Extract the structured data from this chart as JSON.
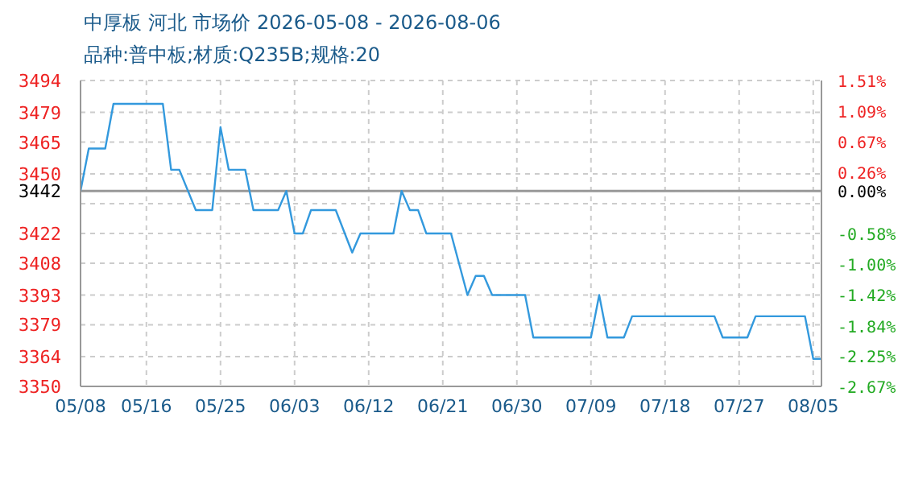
{
  "chart_data": {
    "type": "line",
    "title": "中厚板 河北 市场价 2026-05-08 - 2026-08-06",
    "subtitle": "品种:普中板;材质:Q235B;规格:20",
    "x": [
      "2026-05-08",
      "2026-05-09",
      "2026-05-11",
      "2026-05-12",
      "2026-05-18",
      "2026-05-19",
      "2026-05-20",
      "2026-05-22",
      "2026-05-24",
      "2026-05-25",
      "2026-05-26",
      "2026-05-28",
      "2026-05-29",
      "2026-06-01",
      "2026-06-02",
      "2026-06-03",
      "2026-06-04",
      "2026-06-05",
      "2026-06-08",
      "2026-06-10",
      "2026-06-11",
      "2026-06-15",
      "2026-06-16",
      "2026-06-17",
      "2026-06-18",
      "2026-06-19",
      "2026-06-22",
      "2026-06-24",
      "2026-06-25",
      "2026-06-26",
      "2026-06-27",
      "2026-07-01",
      "2026-07-02",
      "2026-07-09",
      "2026-07-10",
      "2026-07-11",
      "2026-07-13",
      "2026-07-14",
      "2026-07-24",
      "2026-07-25",
      "2026-07-28",
      "2026-07-29",
      "2026-08-04",
      "2026-08-05",
      "2026-08-06"
    ],
    "series": [
      {
        "color": "#3399dd",
        "values": [
          3442,
          3462,
          3462,
          3483,
          3483,
          3452,
          3452,
          3433,
          3433,
          3472,
          3452,
          3452,
          3433,
          3433,
          3442,
          3422,
          3422,
          3433,
          3433,
          3413,
          3422,
          3422,
          3442,
          3433,
          3433,
          3422,
          3422,
          3393,
          3402,
          3402,
          3393,
          3393,
          3373,
          3373,
          3393,
          3373,
          3373,
          3383,
          3383,
          3373,
          3373,
          3383,
          3383,
          3363,
          3363
        ]
      }
    ],
    "xlim": [
      "2026-05-08",
      "2026-08-06"
    ],
    "xticks": [
      {
        "value": "2026-05-08",
        "label": "05/08"
      },
      {
        "value": "2026-05-16",
        "label": "05/16"
      },
      {
        "value": "2026-05-25",
        "label": "05/25"
      },
      {
        "value": "2026-06-03",
        "label": "06/03"
      },
      {
        "value": "2026-06-12",
        "label": "06/12"
      },
      {
        "value": "2026-06-21",
        "label": "06/21"
      },
      {
        "value": "2026-06-30",
        "label": "06/30"
      },
      {
        "value": "2026-07-09",
        "label": "07/09"
      },
      {
        "value": "2026-07-18",
        "label": "07/18"
      },
      {
        "value": "2026-07-27",
        "label": "07/27"
      },
      {
        "value": "2026-08-05",
        "label": "08/05"
      }
    ],
    "ylim": [
      3350,
      3494
    ],
    "yticks": [
      3350,
      3364,
      3379,
      3393,
      3408,
      3422,
      {
        "value": 3436,
        "label": null
      },
      3442,
      3450,
      3465,
      3479,
      3494
    ],
    "y2lim": [
      -2.67,
      1.51
    ],
    "y2ticks": [
      {
        "value": -2.67,
        "label": "-2.67%"
      },
      {
        "value": -2.25,
        "label": "-2.25%"
      },
      {
        "value": -1.84,
        "label": "-1.84%"
      },
      {
        "value": -1.42,
        "label": "-1.42%"
      },
      {
        "value": -1.0,
        "label": "-1.00%"
      },
      {
        "value": -0.58,
        "label": "-0.58%"
      },
      {
        "value": 0,
        "label": "0.00%"
      },
      {
        "value": 0.26,
        "label": "0.26%"
      },
      {
        "value": 0.67,
        "label": "0.67%"
      },
      {
        "value": 1.09,
        "label": "1.09%"
      },
      {
        "value": 1.51,
        "label": "1.51%"
      }
    ],
    "ref_lines": [
      {
        "axis": "y",
        "value": 3442,
        "color": "#999999"
      }
    ],
    "grid": true,
    "marker": "none",
    "line_style": "solid"
  }
}
